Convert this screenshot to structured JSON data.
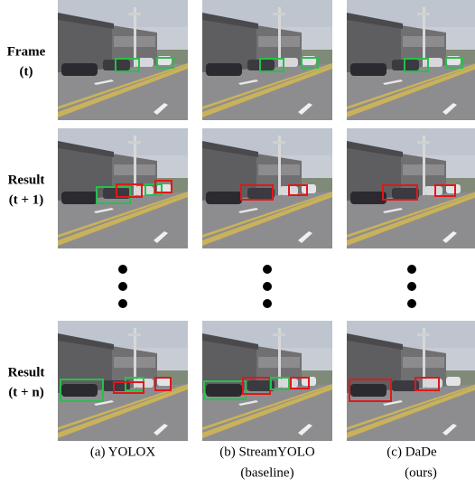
{
  "row_labels": [
    {
      "line1": "Frame",
      "line2": "(t)"
    },
    {
      "line1": "Result",
      "line2": "(t + 1)"
    },
    {
      "line1": "Result",
      "line2": "(t + n)"
    }
  ],
  "columns": [
    {
      "label": "(a) YOLOX"
    },
    {
      "label": "(b) StreamYOLO",
      "sublabel": "(baseline)"
    },
    {
      "label": "(c) DaDe",
      "sublabel": "(ours)"
    }
  ]
}
